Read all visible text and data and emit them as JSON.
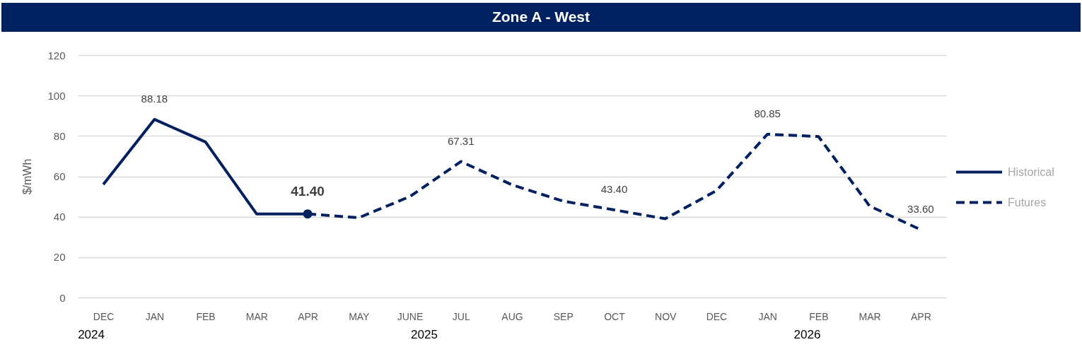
{
  "chart_data": {
    "type": "line",
    "title": "Zone A - West",
    "ylabel": "$/mWh",
    "categories": [
      "DEC",
      "JAN",
      "FEB",
      "MAR",
      "APR",
      "MAY",
      "JUNE",
      "JUL",
      "AUG",
      "SEP",
      "OCT",
      "NOV",
      "DEC",
      "JAN",
      "FEB",
      "MAR",
      "APR"
    ],
    "series": [
      {
        "name": "Historical",
        "color": "#002060",
        "line_style": "solid",
        "values": [
          56,
          88.18,
          77,
          41.4,
          41.4,
          null,
          null,
          null,
          null,
          null,
          null,
          null,
          null,
          null,
          null,
          null,
          null
        ],
        "value_labels": [
          null,
          "88.18",
          null,
          null,
          null,
          null,
          null,
          null,
          null,
          null,
          null,
          null,
          null,
          null,
          null,
          null,
          null
        ]
      },
      {
        "name": "Futures",
        "color": "#002060",
        "line_style": "dashed",
        "values": [
          null,
          null,
          null,
          null,
          41.4,
          39.5,
          50,
          67.31,
          55.8,
          47.7,
          43.4,
          39,
          52.9,
          80.85,
          79.7,
          45.3,
          33.6
        ],
        "value_labels": [
          null,
          null,
          null,
          null,
          null,
          null,
          null,
          "67.31",
          null,
          null,
          "43.40",
          null,
          null,
          "80.85",
          null,
          null,
          "33.60"
        ]
      },
      {
        "type": "scatter",
        "color": "#002060",
        "marker": "circle",
        "values": [
          null,
          null,
          null,
          null,
          41.4,
          null,
          null,
          null,
          null,
          null,
          null,
          null,
          null,
          null,
          null,
          null,
          null
        ],
        "value_labels": [
          null,
          null,
          null,
          null,
          "41.40",
          null,
          null,
          null,
          null,
          null,
          null,
          null,
          null,
          null,
          null,
          null,
          null
        ]
      }
    ],
    "ylim": [
      0,
      120
    ],
    "yticks": [
      0,
      20,
      40,
      60,
      80,
      100,
      120
    ],
    "grid": "y",
    "legend": "right",
    "annotations": [
      "2024",
      "2025",
      "2026"
    ]
  }
}
